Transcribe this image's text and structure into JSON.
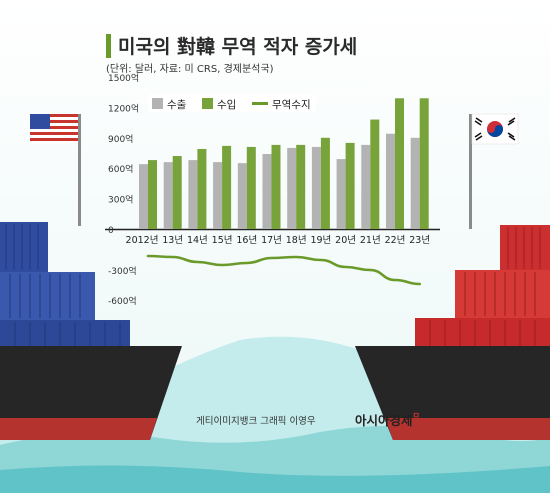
{
  "title": "미국의 對韓 무역 적자 증가세",
  "subtitle": "(단위: 달러, 자료: 미 CRS, 경제분석국)",
  "credit": "게티이미지뱅크  그래픽 이영우",
  "brand": "아시아경제",
  "brand_mark": "ㅁ",
  "colors": {
    "export": "#b3b3b3",
    "import": "#78a33a",
    "balance": "#6a9a2a",
    "sea": "#a9dede",
    "us_ship": "#2a4aa0",
    "kr_ship": "#cf2d2d"
  },
  "chart_data": {
    "type": "bar",
    "categories": [
      "2012년",
      "13년",
      "14년",
      "15년",
      "16년",
      "17년",
      "18년",
      "19년",
      "20년",
      "21년",
      "22년",
      "23년"
    ],
    "series": [
      {
        "name": "수출",
        "type": "bar",
        "values": [
          640,
          660,
          680,
          660,
          650,
          740,
          800,
          810,
          690,
          830,
          940,
          900
        ]
      },
      {
        "name": "수입",
        "type": "bar",
        "values": [
          680,
          720,
          790,
          820,
          810,
          830,
          830,
          900,
          850,
          1080,
          1290,
          1290
        ]
      },
      {
        "name": "무역수지",
        "type": "line",
        "values": [
          -160,
          -170,
          -220,
          -250,
          -230,
          -180,
          -170,
          -200,
          -270,
          -300,
          -400,
          -440
        ]
      }
    ],
    "y_tick_labels": [
      "1500억",
      "1200억",
      "900억",
      "600억",
      "300억",
      "0",
      "-300억",
      "-600억"
    ],
    "y_tick_values": [
      1500,
      1200,
      900,
      600,
      300,
      0,
      -300,
      -600
    ],
    "ylim": [
      -600,
      1500
    ],
    "legend_position": "top-left",
    "grid": false
  }
}
